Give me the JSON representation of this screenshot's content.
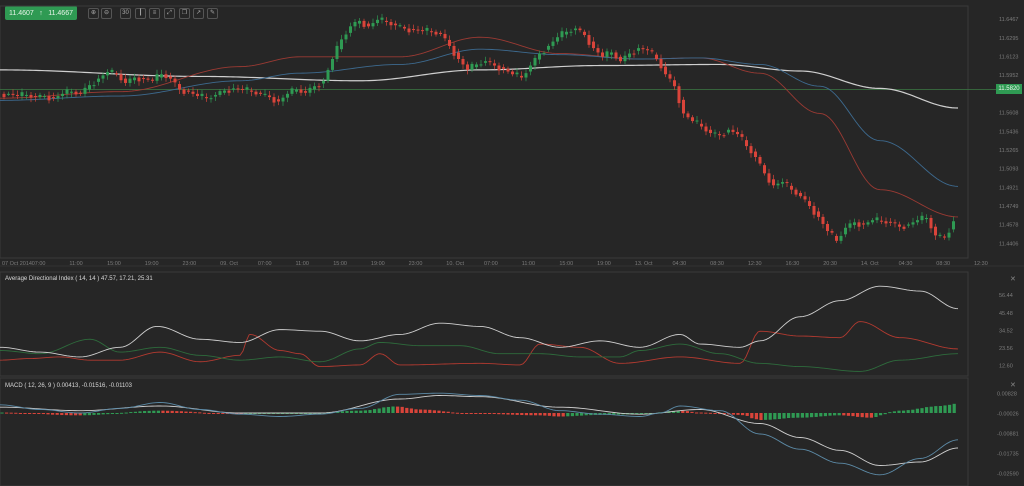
{
  "toolbar": {
    "bid": "11.4607",
    "arrow": "↑",
    "ask": "11.4667",
    "buttons": [
      {
        "name": "zoom-in-icon",
        "glyph": "⊕"
      },
      {
        "name": "zoom-out-icon",
        "glyph": "⊖"
      },
      {
        "name": "timeframe-icon",
        "glyph": "30"
      },
      {
        "name": "chart-type-icon",
        "glyph": "┃"
      },
      {
        "name": "indicators-icon",
        "glyph": "≡"
      },
      {
        "name": "drawing-icon",
        "glyph": "⤢"
      },
      {
        "name": "templates-icon",
        "glyph": "❐"
      },
      {
        "name": "analysis-icon",
        "glyph": "↗"
      },
      {
        "name": "pen-icon",
        "glyph": "✎"
      }
    ]
  },
  "main_panel": {
    "last_price": "11.5820",
    "y_labels": [
      "11.6467",
      "11.6295",
      "11.6123",
      "11.5952",
      "11.5608",
      "11.5436",
      "11.5265",
      "11.5093",
      "11.4921",
      "11.4749",
      "11.4578",
      "11.4406"
    ],
    "x_labels": [
      "07 Oct 2014",
      "07:00",
      "11:00",
      "15:00",
      "19:00",
      "23:00",
      "09. Oct",
      "07:00",
      "11:00",
      "15:00",
      "19:00",
      "23:00",
      "10. Oct",
      "07:00",
      "11:00",
      "15:00",
      "19:00",
      "13. Oct",
      "04:30",
      "08:30",
      "12:30",
      "16:30",
      "20:30",
      "14. Oct",
      "04:30",
      "08:30",
      "12:30"
    ]
  },
  "adx_panel": {
    "title": "Average Directional Index ( 14, 14 ) 47.57, 17.21, 25.31",
    "y_labels": [
      "56.44",
      "45.48",
      "34.52",
      "23.56",
      "12.60"
    ]
  },
  "macd_panel": {
    "title": "MACD ( 12, 26, 9 ) 0.00413, -0.01516, -0.01103",
    "y_labels": [
      "0.00828",
      "-0.00026",
      "-0.00881",
      "-0.01735",
      "-0.02590"
    ]
  },
  "colors": {
    "background": "#262626",
    "up": "#2f9a53",
    "down": "#d9443a",
    "ma_fast": "#3d6a8f",
    "ma_mid": "#9a3a33",
    "ma_slow": "#cfcfcf",
    "adx": "#cfcfcf",
    "di_plus": "#2e6b3c",
    "di_minus": "#b23a30",
    "macd_line": "#5c8aa6",
    "signal_line": "#cfcfcf",
    "price_line": "#3d7a45"
  },
  "chart_data": [
    {
      "type": "candlestick",
      "title": "Price (30-minute candles)",
      "ylim": [
        11.43,
        11.655
      ],
      "y_ticks": [
        11.6467,
        11.6295,
        11.6123,
        11.5952,
        11.582,
        11.5608,
        11.5436,
        11.5265,
        11.5093,
        11.4921,
        11.4749,
        11.4578,
        11.4406
      ],
      "x_ticks": [
        "07 Oct 2014",
        "07:00",
        "11:00",
        "15:00",
        "19:00",
        "23:00",
        "09. Oct",
        "07:00",
        "11:00",
        "15:00",
        "19:00",
        "23:00",
        "10. Oct",
        "07:00",
        "11:00",
        "15:00",
        "19:00",
        "13. Oct",
        "04:30",
        "08:30",
        "12:30",
        "16:30",
        "20:30",
        "14. Oct",
        "04:30",
        "08:30",
        "12:30"
      ],
      "horizontal_line": 11.582,
      "close_series": [
        11.578,
        11.576,
        11.577,
        11.575,
        11.576,
        11.574,
        11.578,
        11.58,
        11.578,
        11.586,
        11.592,
        11.598,
        11.596,
        11.588,
        11.593,
        11.592,
        11.59,
        11.596,
        11.592,
        11.582,
        11.58,
        11.576,
        11.574,
        11.577,
        11.581,
        11.583,
        11.582,
        11.58,
        11.578,
        11.575,
        11.571,
        11.578,
        11.582,
        11.579,
        11.585,
        11.59,
        11.61,
        11.628,
        11.64,
        11.645,
        11.64,
        11.646,
        11.644,
        11.641,
        11.638,
        11.637,
        11.636,
        11.635,
        11.633,
        11.622,
        11.61,
        11.6,
        11.605,
        11.608,
        11.604,
        11.601,
        11.596,
        11.593,
        11.604,
        11.615,
        11.622,
        11.63,
        11.635,
        11.638,
        11.632,
        11.62,
        11.612,
        11.616,
        11.608,
        11.615,
        11.62,
        11.618,
        11.61,
        11.596,
        11.585,
        11.56,
        11.553,
        11.548,
        11.542,
        11.54,
        11.545,
        11.541,
        11.53,
        11.52,
        11.505,
        11.494,
        11.497,
        11.49,
        11.484,
        11.475,
        11.465,
        11.452,
        11.443,
        11.455,
        11.46,
        11.458,
        11.462,
        11.461,
        11.46,
        11.456,
        11.458,
        11.462,
        11.464,
        11.448,
        11.446,
        11.461
      ],
      "series": [
        {
          "name": "MA fast (blue)",
          "values_at_x": {
            "0": 11.574,
            "120": 11.58,
            "240": 11.603,
            "300": 11.612,
            "400": 11.612,
            "480": 11.63,
            "560": 11.615,
            "640": 11.61,
            "700": 11.611,
            "760": 11.597,
            "820": 11.56,
            "880": 11.49,
            "958": 11.465
          }
        },
        {
          "name": "MA mid (red)",
          "values_at_x": {
            "0": 11.572,
            "120": 11.576,
            "240": 11.59,
            "300": 11.597,
            "400": 11.605,
            "480": 11.619,
            "560": 11.614,
            "640": 11.61,
            "700": 11.611,
            "760": 11.605,
            "820": 11.585,
            "880": 11.535,
            "958": 11.493
          }
        },
        {
          "name": "MA slow (white)",
          "values_at_x": {
            "0": 11.6,
            "200": 11.594,
            "360": 11.59,
            "480": 11.6,
            "600": 11.604,
            "720": 11.605,
            "800": 11.599,
            "880": 11.583,
            "958": 11.565
          }
        }
      ]
    },
    {
      "type": "line",
      "title": "Average Directional Index ( 14, 14 ) 47.57, 17.21, 25.31",
      "ylim": [
        8,
        64
      ],
      "y_ticks": [
        56.44,
        45.48,
        34.52,
        23.56,
        12.6
      ],
      "series": [
        {
          "name": "ADX",
          "last": 47.57,
          "values_at_x": {
            "0": 24,
            "40": 21,
            "80": 18,
            "120": 24,
            "157": 37,
            "200": 29,
            "240": 27,
            "280": 35,
            "320": 34,
            "360": 28,
            "400": 32,
            "440": 39,
            "480": 37,
            "520": 30,
            "560": 24,
            "600": 28,
            "640": 24,
            "680": 32,
            "700": 26,
            "740": 24,
            "760": 28,
            "800": 43,
            "840": 53,
            "880": 62,
            "920": 59,
            "958": 48
          }
        },
        {
          "name": "+DI",
          "last": 17.21,
          "values_at_x": {
            "0": 22,
            "40": 20,
            "90": 29,
            "120": 21,
            "160": 24,
            "200": 19,
            "240": 16,
            "280": 18,
            "320": 15,
            "360": 23,
            "380": 27,
            "420": 25,
            "460": 25,
            "500": 20,
            "540": 20,
            "580": 18,
            "620": 18,
            "640": 22,
            "680": 26,
            "720": 20,
            "760": 14,
            "800": 12,
            "860": 9,
            "900": 16,
            "958": 20
          }
        },
        {
          "name": "-DI",
          "last": 25.31,
          "values_at_x": {
            "0": 16,
            "30": 17,
            "60": 18,
            "90": 16,
            "120": 16,
            "160": 21,
            "200": 15,
            "240": 19,
            "250": 32,
            "280": 22,
            "300": 20,
            "320": 12,
            "360": 13,
            "380": 20,
            "400": 13,
            "480": 14,
            "520": 13,
            "540": 26,
            "580": 24,
            "620": 14,
            "680": 18,
            "740": 14,
            "760": 34,
            "800": 31,
            "840": 30,
            "860": 40,
            "900": 30,
            "958": 23
          }
        }
      ]
    },
    {
      "type": "bar+line",
      "title": "MACD ( 12, 26, 9 ) 0.00413, -0.01516, -0.01103",
      "ylim": [
        -0.03,
        0.012
      ],
      "y_ticks": [
        0.00828,
        -0.00026,
        -0.00881,
        -0.01735,
        -0.0259
      ],
      "series": [
        {
          "name": "MACD",
          "last": -0.01103,
          "values_at_x": {
            "0": 0.0035,
            "40": 0.0015,
            "80": 0.0,
            "120": 0.002,
            "160": 0.0045,
            "200": 0.0015,
            "240": -0.0005,
            "280": -0.0015,
            "320": -0.0005,
            "360": 0.002,
            "400": 0.008,
            "440": 0.0085,
            "480": 0.0075,
            "520": 0.0055,
            "560": 0.001,
            "600": -0.0005,
            "640": -0.0015,
            "660": 0.0,
            "680": 0.003,
            "720": 0.001,
            "760": -0.009,
            "800": -0.0155,
            "840": -0.0215,
            "880": -0.0265,
            "920": -0.0195,
            "958": -0.0115
          }
        },
        {
          "name": "Signal",
          "last": -0.01516,
          "values_at_x": {
            "0": 0.0025,
            "80": 0.001,
            "160": 0.003,
            "240": 0.0,
            "320": 0.0,
            "400": 0.006,
            "440": 0.0075,
            "480": 0.007,
            "560": 0.0025,
            "640": -0.0005,
            "700": 0.0015,
            "760": -0.0045,
            "800": -0.0105,
            "840": -0.016,
            "880": -0.0225,
            "920": -0.021,
            "958": -0.015
          }
        },
        {
          "name": "Histogram",
          "last": 0.00413,
          "values_at_x": {
            "0": 0.0002,
            "80": -0.001,
            "160": 0.001,
            "240": -0.0005,
            "300": -0.0003,
            "360": 0.001,
            "395": 0.0028,
            "420": 0.0015,
            "470": -0.0002,
            "540": -0.001,
            "560": -0.0015,
            "600": -0.0008,
            "640": -0.0005,
            "680": 0.001,
            "700": 0.0002,
            "740": -0.0008,
            "760": -0.003,
            "800": -0.002,
            "840": -0.001,
            "870": -0.002,
            "900": 0.001,
            "940": 0.003,
            "958": 0.004
          }
        }
      ]
    }
  ]
}
